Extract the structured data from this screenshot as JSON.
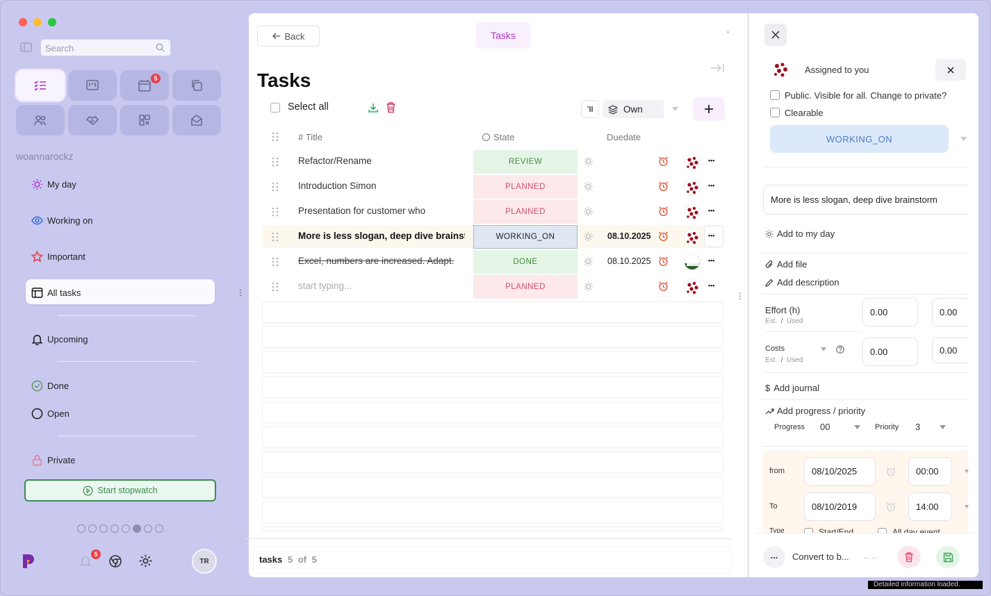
{
  "sidebar": {
    "search_placeholder": "Search",
    "username": "woannarockz",
    "calendar_badge": "5",
    "nav": {
      "my_day": "My day",
      "working_on": "Working on",
      "important": "Important",
      "all_tasks": "All tasks",
      "upcoming": "Upcoming",
      "done": "Done",
      "open": "Open",
      "private": "Private"
    },
    "stopwatch_label": "Start stopwatch",
    "notifications_badge": "5",
    "avatar_initials": "TR"
  },
  "header": {
    "back_label": "Back",
    "tab_label": "Tasks"
  },
  "list": {
    "page_title": "Tasks",
    "select_all_label": "Select all",
    "filter_value": "Own",
    "columns": {
      "title": "Title",
      "state": "State",
      "duedate": "Duedate"
    },
    "rows": [
      {
        "title": "Refactor/Rename",
        "state": "REVIEW",
        "duedate": ""
      },
      {
        "title": "Introduction Simon",
        "state": "PLANNED",
        "duedate": ""
      },
      {
        "title": "Presentation for customer who",
        "state": "PLANNED",
        "duedate": ""
      },
      {
        "title": "More is less slogan, deep dive brainstorm",
        "state": "WORKING_ON",
        "duedate": "08.10.2025"
      },
      {
        "title": "Excel, numbers are increased. Adapt.",
        "state": "DONE",
        "duedate": "08.10.2025"
      },
      {
        "title": "start typing...",
        "state": "PLANNED",
        "duedate": ""
      }
    ],
    "footer": {
      "label": "tasks",
      "count": "5",
      "of": "of",
      "total": "5"
    }
  },
  "detail": {
    "assigned_label": "Assigned to you",
    "public_label": "Public.  Visible for all. Change to private?",
    "clearable_label": "Clearable",
    "state_value": "WORKING_ON",
    "task_title": "More is less slogan, deep dive brainstorm",
    "add_my_day": "Add to my day",
    "add_file": "Add file",
    "add_description": "Add description",
    "effort_label": "Effort (h)",
    "est": "Est.",
    "slash": "/",
    "used": "Used",
    "effort_est": "0.00",
    "effort_used": "0.00",
    "costs_label": "Costs",
    "costs_est": "0.00",
    "costs_used": "0.00",
    "add_journal": "Add journal",
    "add_progress": "Add progress / priority",
    "progress_label": "Progress",
    "progress_value": "00",
    "priority_label": "Priority",
    "priority_value": "3",
    "from_label": "from",
    "from_date": "08/10/2025",
    "from_time": "00:00",
    "to_label": "To",
    "to_date": "08/10/2019",
    "to_time": "14:00",
    "type_label": "Type",
    "start_end": "Start/End",
    "all_day": "All day event",
    "more_label": "...",
    "convert_label": "Convert to b...",
    "convert_dots": "... ..."
  },
  "status_text": "Detailed information loaded."
}
